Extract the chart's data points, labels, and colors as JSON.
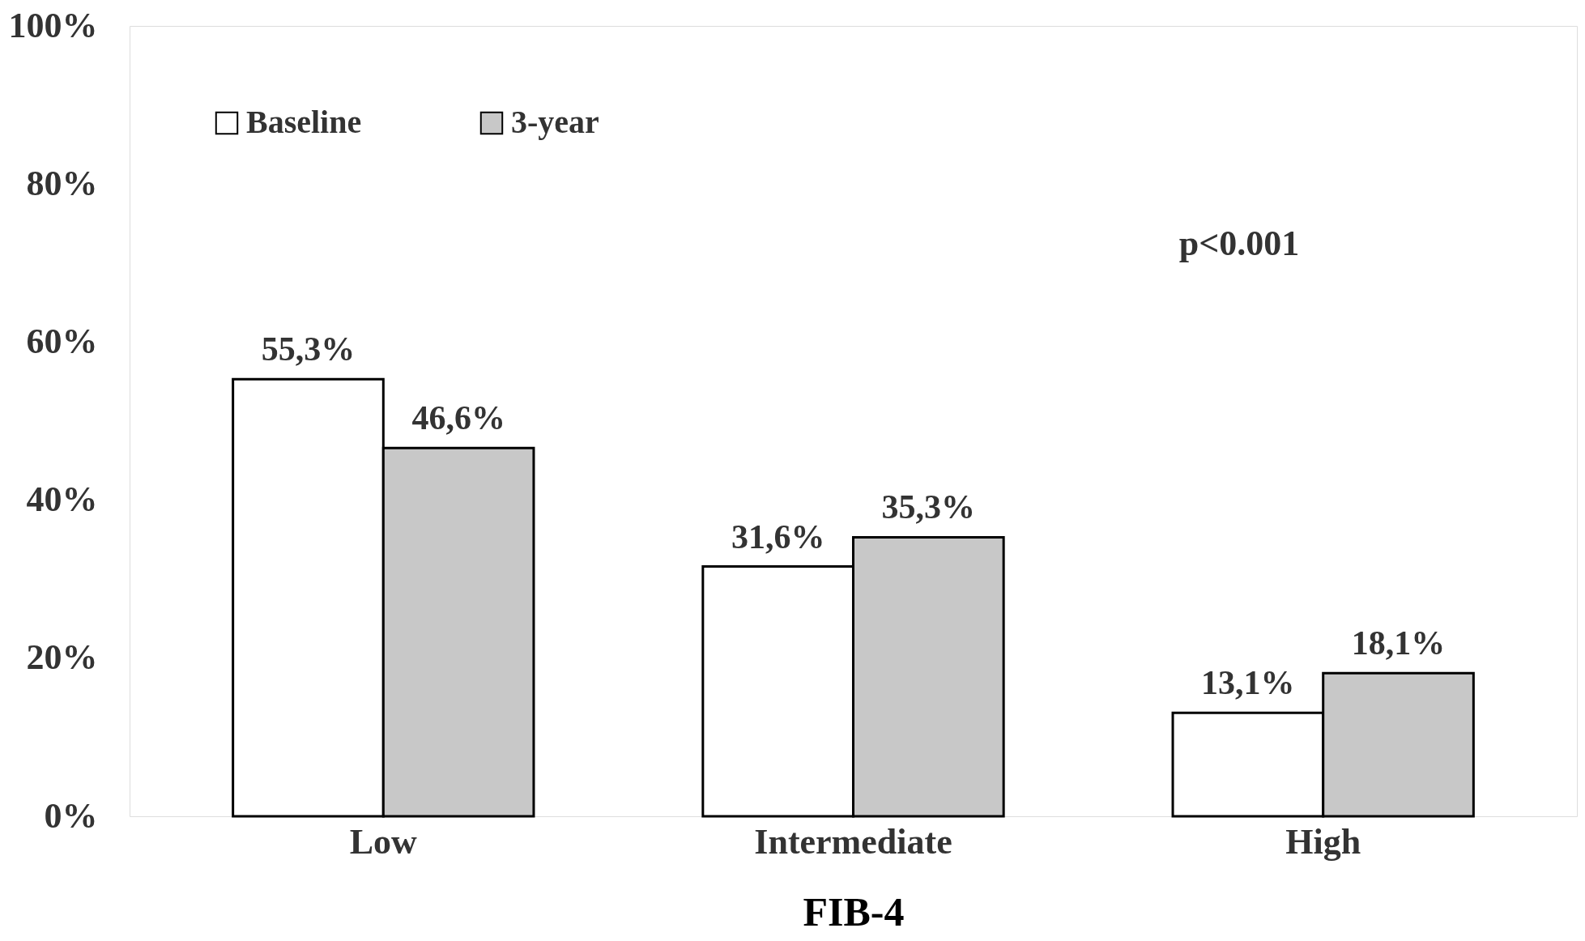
{
  "chart_data": {
    "type": "bar",
    "xlabel": "FIB-4",
    "categories": [
      "Low",
      "Intermediate",
      "High"
    ],
    "series": [
      {
        "name": "Baseline",
        "color": "#ffffff",
        "values": [
          55.3,
          31.6,
          13.1
        ],
        "value_labels": [
          "55,3%",
          "31,6%",
          "13,1%"
        ]
      },
      {
        "name": "3-year",
        "color": "#c8c8c8",
        "values": [
          46.6,
          35.3,
          18.1
        ],
        "value_labels": [
          "46,6%",
          "35,3%",
          "18,1%"
        ]
      }
    ],
    "ylim": [
      0,
      100
    ],
    "yticks": [
      {
        "value": 0,
        "label": "0%"
      },
      {
        "value": 20,
        "label": "20%"
      },
      {
        "value": 40,
        "label": "40%"
      },
      {
        "value": 60,
        "label": "60%"
      },
      {
        "value": 80,
        "label": "80%"
      },
      {
        "value": 100,
        "label": "100%"
      }
    ],
    "annotations": [
      "p<0.001"
    ],
    "legend": "top left",
    "grid": false
  }
}
